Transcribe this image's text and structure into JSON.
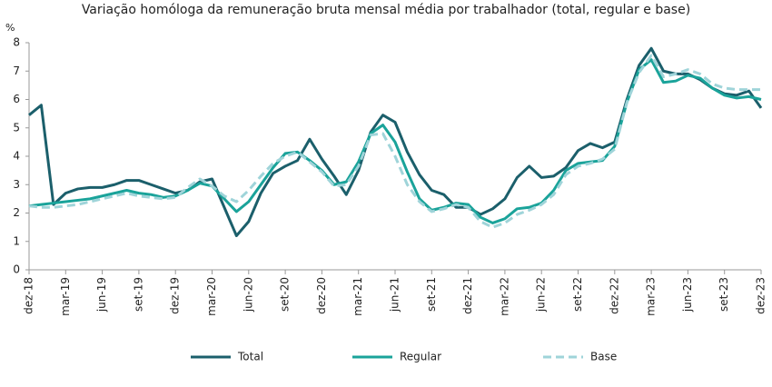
{
  "chart_data": {
    "type": "line",
    "title": "Variação homóloga da remuneração bruta mensal média por trabalhador (total, regular e base)",
    "y_unit": "%",
    "categories": [
      "dez-18",
      null,
      null,
      "mar-19",
      null,
      null,
      "jun-19",
      null,
      null,
      "set-19",
      null,
      null,
      "dez-19",
      null,
      null,
      "mar-20",
      null,
      null,
      "jun-20",
      null,
      null,
      "set-20",
      null,
      null,
      "dez-20",
      null,
      null,
      "mar-21",
      null,
      null,
      "jun-21",
      null,
      null,
      "set-21",
      null,
      null,
      "dez-21",
      null,
      null,
      "mar-22",
      null,
      null,
      "jun-22",
      null,
      null,
      "set-22",
      null,
      null,
      "dez-22",
      null,
      null,
      "mar-23",
      null,
      null,
      "jun-23",
      null,
      null,
      "set-23",
      null,
      null,
      "dez-23"
    ],
    "series": [
      {
        "name": "Total",
        "color": "#1b5f6b",
        "style": "solid",
        "values": [
          5.45,
          5.8,
          2.3,
          2.7,
          2.85,
          2.9,
          2.9,
          3.0,
          3.15,
          3.15,
          3.0,
          2.85,
          2.7,
          2.8,
          3.1,
          3.2,
          2.2,
          1.2,
          1.7,
          2.7,
          3.4,
          3.65,
          3.85,
          4.6,
          3.9,
          3.3,
          2.65,
          3.5,
          4.85,
          5.45,
          5.2,
          4.15,
          3.35,
          2.8,
          2.65,
          2.2,
          2.2,
          1.95,
          2.15,
          2.5,
          3.25,
          3.65,
          3.25,
          3.3,
          3.6,
          4.2,
          4.45,
          4.3,
          4.5,
          6.0,
          7.2,
          7.8,
          7.0,
          6.9,
          6.9,
          6.7,
          6.4,
          6.2,
          6.15,
          6.3,
          5.7
        ]
      },
      {
        "name": "Regular",
        "color": "#1aa39a",
        "style": "solid",
        "values": [
          2.25,
          2.3,
          2.35,
          2.4,
          2.45,
          2.5,
          2.6,
          2.7,
          2.8,
          2.7,
          2.65,
          2.55,
          2.6,
          2.8,
          3.05,
          2.95,
          2.5,
          2.05,
          2.4,
          3.0,
          3.6,
          4.1,
          4.15,
          3.85,
          3.5,
          3.0,
          3.1,
          3.8,
          4.8,
          5.1,
          4.5,
          3.45,
          2.5,
          2.1,
          2.2,
          2.35,
          2.3,
          1.85,
          1.65,
          1.8,
          2.15,
          2.2,
          2.35,
          2.8,
          3.5,
          3.75,
          3.8,
          3.85,
          4.35,
          5.9,
          7.05,
          7.4,
          6.6,
          6.65,
          6.85,
          6.75,
          6.4,
          6.15,
          6.05,
          6.1,
          6.0
        ]
      },
      {
        "name": "Base",
        "color": "#9fd4d9",
        "style": "dashed",
        "values": [
          2.25,
          2.2,
          2.2,
          2.25,
          2.3,
          2.4,
          2.5,
          2.6,
          2.7,
          2.6,
          2.55,
          2.5,
          2.55,
          2.9,
          3.2,
          2.95,
          2.6,
          2.4,
          2.8,
          3.3,
          3.75,
          4.0,
          4.15,
          3.8,
          3.45,
          2.95,
          3.0,
          3.65,
          4.75,
          4.8,
          4.0,
          3.0,
          2.4,
          2.05,
          2.15,
          2.3,
          2.2,
          1.7,
          1.5,
          1.65,
          1.95,
          2.1,
          2.3,
          2.65,
          3.35,
          3.65,
          3.75,
          3.9,
          4.25,
          5.9,
          6.95,
          7.55,
          6.8,
          6.9,
          7.05,
          6.9,
          6.55,
          6.4,
          6.35,
          6.35,
          6.35
        ]
      }
    ],
    "ylim": [
      0,
      8
    ],
    "yticks": [
      0,
      1,
      2,
      3,
      4,
      5,
      6,
      7,
      8
    ],
    "grid": false,
    "legend": "bottom"
  }
}
